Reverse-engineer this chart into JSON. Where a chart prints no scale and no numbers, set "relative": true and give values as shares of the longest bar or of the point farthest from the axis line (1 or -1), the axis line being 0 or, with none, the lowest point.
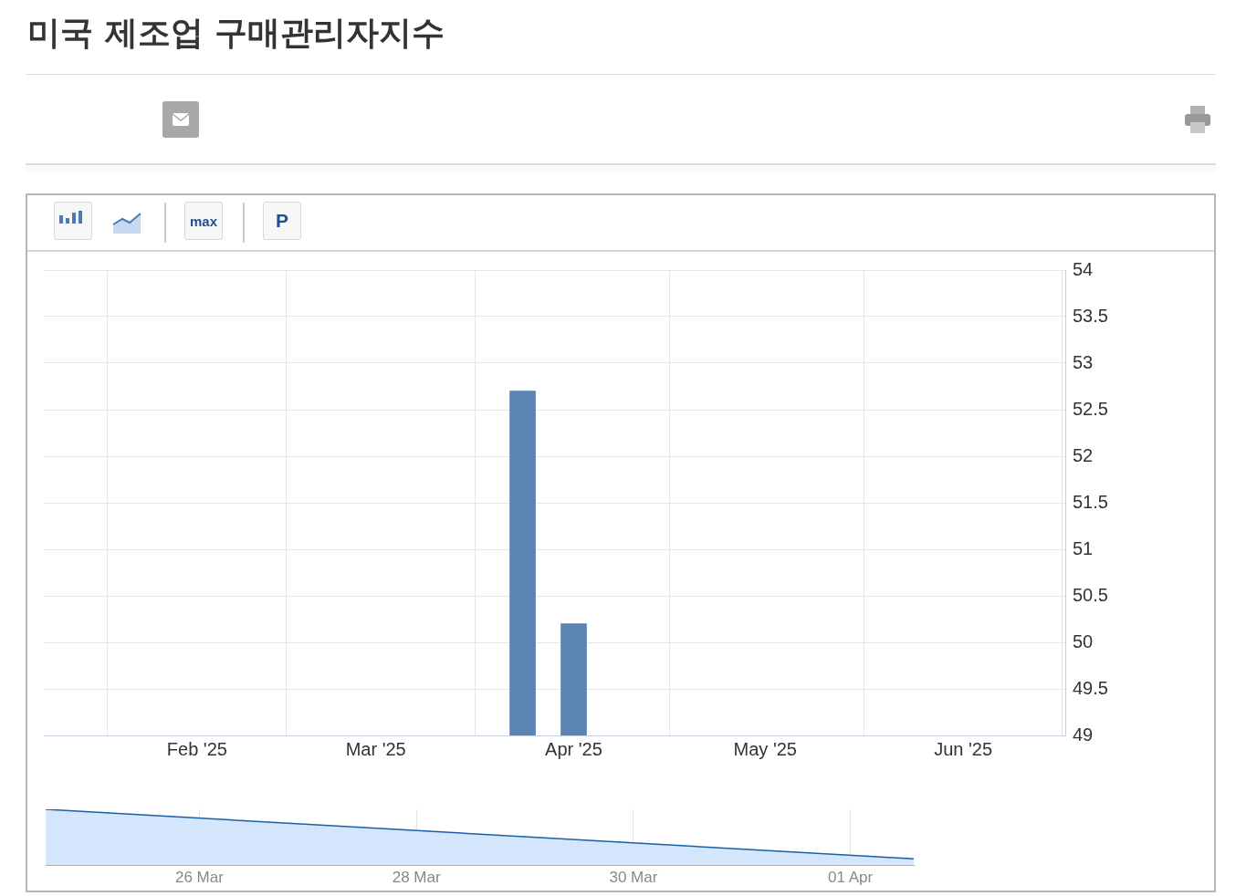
{
  "chart_data": [
    {
      "type": "bar",
      "title": "미국 제조업 구매관리자지수",
      "annotations": [
        "max",
        "P"
      ],
      "x": [
        "2025-03-24",
        "2025-04-01"
      ],
      "values": [
        52.7,
        50.2
      ],
      "color": "#5b84b1",
      "xlim": [
        "2025-01-08",
        "2025-06-17"
      ],
      "xticks": [
        {
          "value": "2025-02-01",
          "label": "Feb '25"
        },
        {
          "value": "2025-03-01",
          "label": "Mar '25"
        },
        {
          "value": "2025-04-01",
          "label": "Apr '25"
        },
        {
          "value": "2025-05-01",
          "label": "May '25"
        },
        {
          "value": "2025-06-01",
          "label": "Jun '25"
        }
      ],
      "ylim": [
        49,
        54
      ],
      "yticks": [
        49,
        49.5,
        50,
        50.5,
        51,
        51.5,
        52,
        52.5,
        53,
        53.5,
        54
      ],
      "grid": true
    },
    {
      "type": "area",
      "relative": true,
      "x": [
        "--03-24T14:00",
        "--04-01T14:00"
      ],
      "values": [
        1,
        0.11
      ],
      "color": "#1a5ea8",
      "xlim": [
        "--03-24T14:00",
        "--04-01T14:00"
      ],
      "xticks": [
        {
          "value": "--03-26",
          "label": "26 Mar"
        },
        {
          "value": "--03-28",
          "label": "28 Mar"
        },
        {
          "value": "--03-30",
          "label": "30 Mar"
        },
        {
          "value": "--04-01",
          "label": "01 Apr"
        }
      ],
      "grid": "x"
    }
  ]
}
